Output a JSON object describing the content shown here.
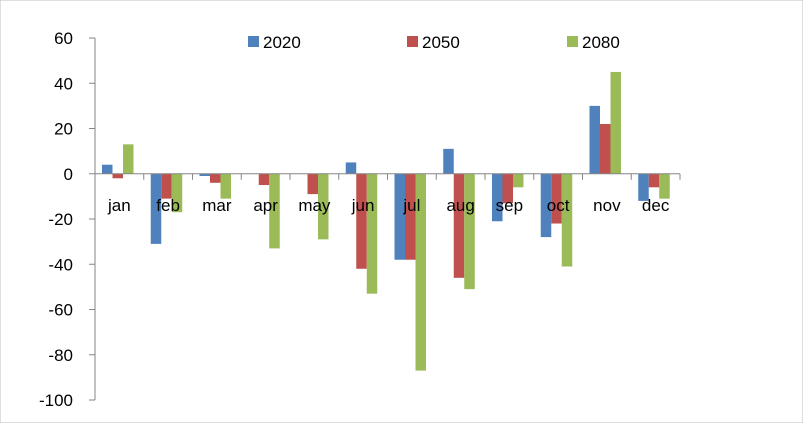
{
  "chart_data": {
    "type": "bar",
    "categories": [
      "jan",
      "feb",
      "mar",
      "apr",
      "may",
      "jun",
      "jul",
      "aug",
      "sep",
      "oct",
      "nov",
      "dec"
    ],
    "series": [
      {
        "name": "2020",
        "color": "#4F81BD",
        "values": [
          4,
          -31,
          -1,
          0,
          0,
          5,
          -38,
          11,
          -21,
          -28,
          30,
          -12
        ]
      },
      {
        "name": "2050",
        "color": "#C0504D",
        "values": [
          -2,
          -11,
          -4,
          -5,
          -9,
          -42,
          -38,
          -46,
          -13,
          -22,
          22,
          -6
        ]
      },
      {
        "name": "2080",
        "color": "#9BBB59",
        "values": [
          13,
          -17,
          -11,
          -33,
          -29,
          -53,
          -87,
          -51,
          -6,
          -41,
          45,
          -11
        ]
      }
    ],
    "ylim": [
      -100,
      60
    ],
    "yticks": [
      "-100",
      "-80",
      "-60",
      "-40",
      "-20",
      "0",
      "20",
      "40",
      "60"
    ],
    "ytick_values": [
      -100,
      -80,
      -60,
      -40,
      -20,
      0,
      20,
      40,
      60
    ],
    "legend_position": "top",
    "grid": false
  }
}
